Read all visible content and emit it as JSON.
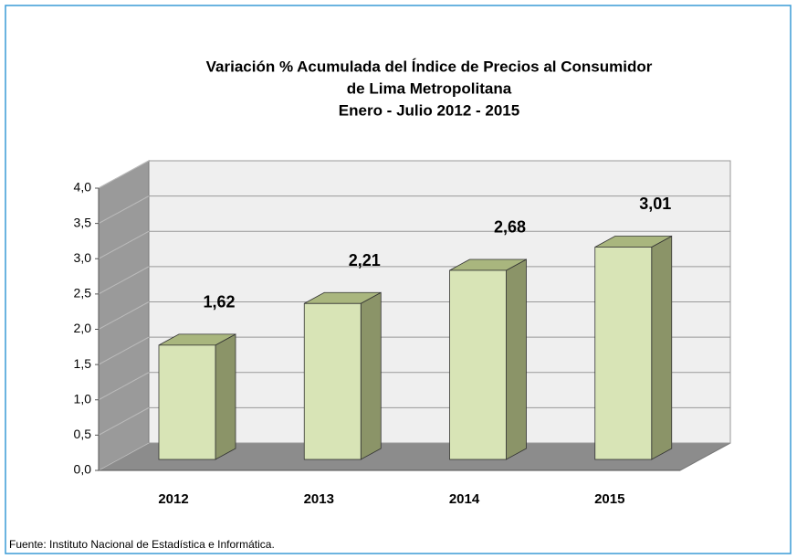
{
  "chart_data": {
    "type": "bar",
    "title": [
      "Variación % Acumulada del Índice de Precios al Consumidor",
      "de Lima Metropolitana",
      "Enero - Julio 2012 - 2015"
    ],
    "categories": [
      "2012",
      "2013",
      "2014",
      "2015"
    ],
    "values": [
      1.62,
      2.21,
      2.68,
      3.01
    ],
    "value_labels": [
      "1,62",
      "2,21",
      "2,68",
      "3,01"
    ],
    "color": "#d8e4b6",
    "ylim": [
      0,
      4
    ],
    "yticks": [
      {
        "value": 0,
        "label": "0,0"
      },
      {
        "value": 0.5,
        "label": "0,5"
      },
      {
        "value": 1,
        "label": "1,0"
      },
      {
        "value": 1.5,
        "label": "1,5"
      },
      {
        "value": 2,
        "label": "2,0"
      },
      {
        "value": 2.5,
        "label": "2,5"
      },
      {
        "value": 3,
        "label": "3,0"
      },
      {
        "value": 3.5,
        "label": "3,5"
      },
      {
        "value": 4,
        "label": "4,0"
      }
    ],
    "grid": true,
    "source": "Fuente: Instituto Nacional de Estadística e Informática."
  }
}
